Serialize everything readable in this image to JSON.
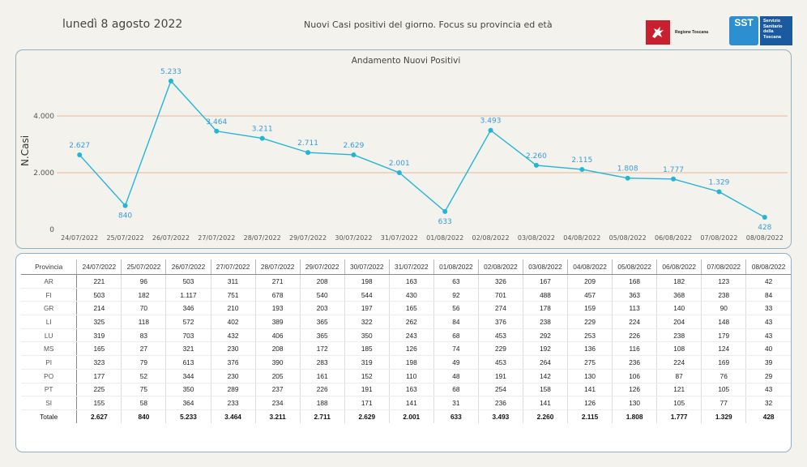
{
  "header": {
    "date": "lunedì 8 agosto 2022",
    "subtitle": "Nuovi Casi positivi del giorno. Focus su provincia ed età",
    "logo_regione": "Regione Toscana",
    "logo_sst_mark": "SST",
    "logo_sst_text": [
      "Servizio",
      "Sanitario",
      "della",
      "Toscana"
    ]
  },
  "colors": {
    "line": "#22b5d8",
    "label": "#3a9bd5",
    "gridline": "#e8b79a",
    "panel_border": "#8eb0c6"
  },
  "chart_data": {
    "type": "line",
    "title": "Andamento Nuovi Positivi",
    "ylabel": "N.Casi",
    "xlabel": "",
    "x": [
      "24/07/2022",
      "25/07/2022",
      "26/07/2022",
      "27/07/2022",
      "28/07/2022",
      "29/07/2022",
      "30/07/2022",
      "31/07/2022",
      "01/08/2022",
      "02/08/2022",
      "03/08/2022",
      "04/08/2022",
      "05/08/2022",
      "06/08/2022",
      "07/08/2022",
      "08/08/2022"
    ],
    "values": [
      2627,
      840,
      5233,
      3464,
      3211,
      2711,
      2629,
      2001,
      633,
      3493,
      2260,
      2115,
      1808,
      1777,
      1329,
      428
    ],
    "value_labels": [
      "2.627",
      "840",
      "5.233",
      "3.464",
      "3.211",
      "2.711",
      "2.629",
      "2.001",
      "633",
      "3.493",
      "2.260",
      "2.115",
      "1.808",
      "1.777",
      "1.329",
      "428"
    ],
    "yticks": [
      0,
      2000,
      4000
    ],
    "ytick_labels": [
      "0",
      "2.000",
      "4.000"
    ],
    "ylim": [
      0,
      5800
    ],
    "grid": true
  },
  "table": {
    "header_label": "Provincia",
    "dates": [
      "24/07/2022",
      "25/07/2022",
      "26/07/2022",
      "27/07/2022",
      "28/07/2022",
      "29/07/2022",
      "30/07/2022",
      "31/07/2022",
      "01/08/2022",
      "02/08/2022",
      "03/08/2022",
      "04/08/2022",
      "05/08/2022",
      "06/08/2022",
      "07/08/2022",
      "08/08/2022"
    ],
    "rows": [
      {
        "provincia": "AR",
        "values": [
          "221",
          "96",
          "503",
          "311",
          "271",
          "208",
          "198",
          "163",
          "63",
          "326",
          "167",
          "209",
          "168",
          "182",
          "123",
          "42"
        ]
      },
      {
        "provincia": "FI",
        "values": [
          "503",
          "182",
          "1.117",
          "751",
          "678",
          "540",
          "544",
          "430",
          "92",
          "701",
          "488",
          "457",
          "363",
          "368",
          "238",
          "84"
        ]
      },
      {
        "provincia": "GR",
        "values": [
          "214",
          "70",
          "346",
          "210",
          "193",
          "203",
          "197",
          "165",
          "56",
          "274",
          "178",
          "159",
          "113",
          "140",
          "90",
          "33"
        ]
      },
      {
        "provincia": "LI",
        "values": [
          "325",
          "118",
          "572",
          "402",
          "389",
          "365",
          "322",
          "262",
          "84",
          "376",
          "238",
          "229",
          "224",
          "204",
          "148",
          "43"
        ]
      },
      {
        "provincia": "LU",
        "values": [
          "319",
          "83",
          "703",
          "432",
          "406",
          "365",
          "350",
          "243",
          "68",
          "453",
          "292",
          "253",
          "226",
          "238",
          "179",
          "43"
        ]
      },
      {
        "provincia": "MS",
        "values": [
          "165",
          "27",
          "321",
          "230",
          "208",
          "172",
          "185",
          "126",
          "74",
          "229",
          "192",
          "136",
          "116",
          "108",
          "124",
          "40"
        ]
      },
      {
        "provincia": "PI",
        "values": [
          "323",
          "79",
          "613",
          "376",
          "390",
          "283",
          "319",
          "198",
          "49",
          "453",
          "264",
          "275",
          "236",
          "224",
          "169",
          "39"
        ]
      },
      {
        "provincia": "PO",
        "values": [
          "177",
          "52",
          "344",
          "230",
          "205",
          "161",
          "152",
          "110",
          "48",
          "191",
          "142",
          "130",
          "106",
          "87",
          "76",
          "29"
        ]
      },
      {
        "provincia": "PT",
        "values": [
          "225",
          "75",
          "350",
          "289",
          "237",
          "226",
          "191",
          "163",
          "68",
          "254",
          "158",
          "141",
          "126",
          "121",
          "105",
          "43"
        ]
      },
      {
        "provincia": "SI",
        "values": [
          "155",
          "58",
          "364",
          "233",
          "234",
          "188",
          "171",
          "141",
          "31",
          "236",
          "141",
          "126",
          "130",
          "105",
          "77",
          "32"
        ]
      }
    ],
    "total_label": "Totale",
    "totals": [
      "2.627",
      "840",
      "5.233",
      "3.464",
      "3.211",
      "2.711",
      "2.629",
      "2.001",
      "633",
      "3.493",
      "2.260",
      "2.115",
      "1.808",
      "1.777",
      "1.329",
      "428"
    ]
  }
}
